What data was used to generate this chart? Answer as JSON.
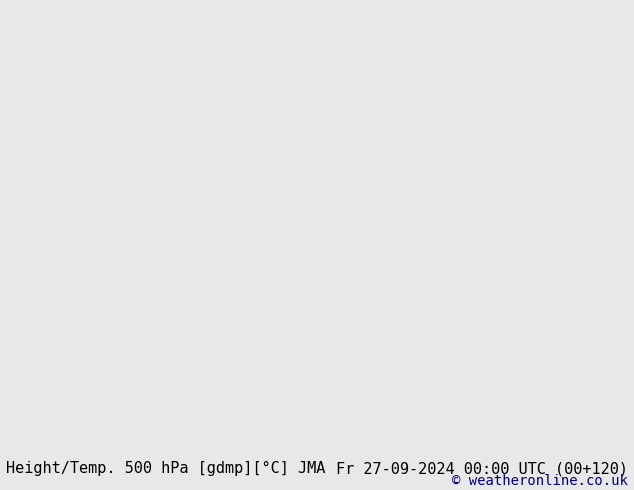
{
  "title_left": "Height/Temp. 500 hPa [gdmp][°C] JMA",
  "title_right": "Fr 27-09-2024 00:00 UTC (00+120)",
  "copyright": "© weatheronline.co.uk",
  "background_color": "#f0f0f0",
  "land_color": "#c8f5a0",
  "ocean_color": "#c8c8c8",
  "map_bg_color": "#e8e8e8",
  "border_color": "#404040",
  "state_border_color": "#404040",
  "text_color": "#000000",
  "copyright_color": "#00008b",
  "font_family": "monospace",
  "font_size_title": 11,
  "font_size_copyright": 10,
  "figsize": [
    6.34,
    4.9
  ],
  "dpi": 100
}
